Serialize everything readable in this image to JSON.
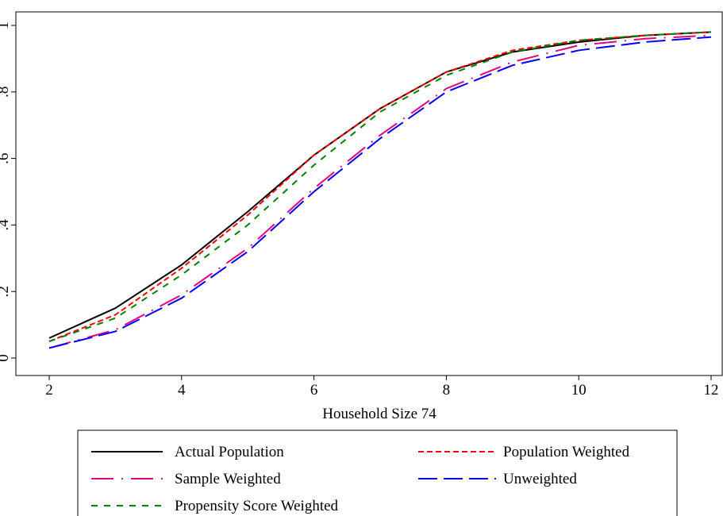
{
  "chart_data": {
    "type": "line",
    "x": [
      2,
      3,
      4,
      5,
      6,
      7,
      8,
      9,
      10,
      11,
      12
    ],
    "x_label": "Household Size 74",
    "xlim": [
      2,
      12
    ],
    "xticks": [
      2,
      4,
      6,
      8,
      10,
      12
    ],
    "ylim": [
      0,
      1
    ],
    "yticks": [
      0,
      {
        "value": 0.2,
        "label": ".2"
      },
      {
        "value": 0.4,
        "label": ".4"
      },
      {
        "value": 0.6,
        "label": ".6"
      },
      {
        "value": 0.8,
        "label": ".8"
      },
      1
    ],
    "grid": false,
    "series": [
      {
        "name": "Actual Population",
        "color": "#000000",
        "dash": "none",
        "values": [
          0.06,
          0.15,
          0.28,
          0.44,
          0.61,
          0.75,
          0.86,
          0.92,
          0.95,
          0.97,
          0.98
        ]
      },
      {
        "name": "Population Weighted",
        "color": "#ff0000",
        "dash": "7 4",
        "values": [
          0.05,
          0.13,
          0.27,
          0.43,
          0.61,
          0.75,
          0.86,
          0.925,
          0.955,
          0.97,
          0.98
        ]
      },
      {
        "name": "Sample Weighted",
        "color": "#e6007e",
        "dash": "28 10 2 10",
        "values": [
          0.03,
          0.085,
          0.19,
          0.33,
          0.51,
          0.67,
          0.81,
          0.89,
          0.94,
          0.96,
          0.97
        ]
      },
      {
        "name": "Unweighted",
        "color": "#0000ff",
        "dash": "24 8",
        "values": [
          0.03,
          0.08,
          0.18,
          0.32,
          0.5,
          0.66,
          0.8,
          0.88,
          0.925,
          0.95,
          0.965
        ]
      },
      {
        "name": "Propensity Score Weighted",
        "color": "#008000",
        "dash": "8 8",
        "values": [
          0.05,
          0.12,
          0.25,
          0.4,
          0.58,
          0.74,
          0.85,
          0.92,
          0.955,
          0.97,
          0.98
        ]
      }
    ]
  }
}
